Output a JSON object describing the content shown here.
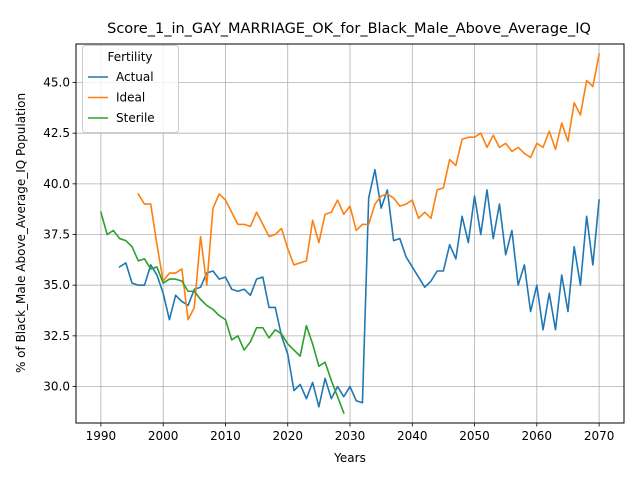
{
  "chart_data": {
    "type": "line",
    "title": "Score_1_in_GAY_MARRIAGE_OK_for_Black_Male_Above_Average_IQ",
    "xlabel": "Years",
    "ylabel": "% of Black_Male Above_Average_IQ Population",
    "xlim": [
      1986.0,
      2074.0
    ],
    "ylim": [
      28.2,
      46.9
    ],
    "xticks": [
      1990,
      2000,
      2010,
      2020,
      2030,
      2040,
      2050,
      2060,
      2070
    ],
    "xtick_labels": [
      "1990",
      "2000",
      "2010",
      "2020",
      "2030",
      "2040",
      "2050",
      "2060",
      "2070"
    ],
    "yticks": [
      30.0,
      32.5,
      35.0,
      37.5,
      40.0,
      42.5,
      45.0
    ],
    "ytick_labels": [
      "30.0",
      "32.5",
      "35.0",
      "37.5",
      "40.0",
      "42.5",
      "45.0"
    ],
    "grid": true,
    "legend": {
      "title": "Fertility",
      "position": "top-left"
    },
    "series": [
      {
        "name": "Actual",
        "color": "#1f77b4",
        "x": [
          1993,
          1994,
          1995,
          1996,
          1997,
          1998,
          1999,
          2000,
          2001,
          2002,
          2003,
          2004,
          2005,
          2006,
          2007,
          2008,
          2009,
          2010,
          2011,
          2012,
          2013,
          2014,
          2015,
          2016,
          2017,
          2018,
          2019,
          2020,
          2021,
          2022,
          2023,
          2024,
          2025,
          2026,
          2027,
          2028,
          2029,
          2030,
          2031,
          2032,
          2033,
          2034,
          2035,
          2036,
          2037,
          2038,
          2039,
          2040,
          2041,
          2042,
          2043,
          2044,
          2045,
          2046,
          2047,
          2048,
          2049,
          2050,
          2051,
          2052,
          2053,
          2054,
          2055,
          2056,
          2057,
          2058,
          2059,
          2060,
          2061,
          2062,
          2063,
          2064,
          2065,
          2066,
          2067,
          2068,
          2069,
          2070
        ],
        "y": [
          35.9,
          36.1,
          35.1,
          35.0,
          35.0,
          36.0,
          35.5,
          34.6,
          33.3,
          34.5,
          34.2,
          34.0,
          34.8,
          34.9,
          35.6,
          35.7,
          35.3,
          35.4,
          34.8,
          34.7,
          34.8,
          34.5,
          35.3,
          35.4,
          33.9,
          33.9,
          32.5,
          31.6,
          29.8,
          30.1,
          29.4,
          30.2,
          29.0,
          30.4,
          29.4,
          30.0,
          29.5,
          30.0,
          29.3,
          29.2,
          39.3,
          40.7,
          38.8,
          39.7,
          37.2,
          37.3,
          36.4,
          35.9,
          35.4,
          34.9,
          35.2,
          35.7,
          35.7,
          37.0,
          36.3,
          38.4,
          37.1,
          39.4,
          37.5,
          39.7,
          37.3,
          39.0,
          36.5,
          37.7,
          35.0,
          36.0,
          33.7,
          35.0,
          32.8,
          34.6,
          32.8,
          35.5,
          33.7,
          36.9,
          35.0,
          38.4,
          36.0,
          39.2
        ]
      },
      {
        "name": "Ideal",
        "color": "#ff7f0e",
        "x": [
          1996,
          1997,
          1998,
          1999,
          2000,
          2001,
          2002,
          2003,
          2004,
          2005,
          2006,
          2007,
          2008,
          2009,
          2010,
          2011,
          2012,
          2013,
          2014,
          2015,
          2016,
          2017,
          2018,
          2019,
          2020,
          2021,
          2022,
          2023,
          2024,
          2025,
          2026,
          2027,
          2028,
          2029,
          2030,
          2031,
          2032,
          2033,
          2034,
          2035,
          2036,
          2037,
          2038,
          2039,
          2040,
          2041,
          2042,
          2043,
          2044,
          2045,
          2046,
          2047,
          2048,
          2049,
          2050,
          2051,
          2052,
          2053,
          2054,
          2055,
          2056,
          2057,
          2058,
          2059,
          2060,
          2061,
          2062,
          2063,
          2064,
          2065,
          2066,
          2067,
          2068,
          2069,
          2070
        ],
        "y": [
          39.5,
          39.0,
          39.0,
          37.0,
          35.2,
          35.6,
          35.6,
          35.8,
          33.3,
          33.9,
          37.4,
          35.0,
          38.8,
          39.5,
          39.2,
          38.6,
          38.0,
          38.0,
          37.9,
          38.6,
          38.0,
          37.4,
          37.5,
          37.8,
          36.8,
          36.0,
          36.1,
          36.2,
          38.2,
          37.1,
          38.5,
          38.6,
          39.2,
          38.5,
          38.9,
          37.7,
          38.0,
          38.0,
          39.0,
          39.4,
          39.5,
          39.3,
          38.9,
          39.0,
          39.2,
          38.3,
          38.6,
          38.3,
          39.7,
          39.8,
          41.2,
          40.9,
          42.2,
          42.3,
          42.3,
          42.5,
          41.8,
          42.4,
          41.8,
          42.0,
          41.6,
          41.8,
          41.5,
          41.3,
          42.0,
          41.8,
          42.6,
          41.7,
          43.0,
          42.1,
          44.0,
          43.4,
          45.1,
          44.8,
          46.4
        ]
      },
      {
        "name": "Sterile",
        "color": "#2ca02c",
        "x": [
          1990,
          1991,
          1992,
          1993,
          1994,
          1995,
          1996,
          1997,
          1998,
          1999,
          2000,
          2001,
          2002,
          2003,
          2004,
          2005,
          2006,
          2007,
          2008,
          2009,
          2010,
          2011,
          2012,
          2013,
          2014,
          2015,
          2016,
          2017,
          2018,
          2019,
          2020,
          2021,
          2022,
          2023,
          2024,
          2025,
          2026,
          2027,
          2028,
          2029
        ],
        "y": [
          38.6,
          37.5,
          37.7,
          37.3,
          37.2,
          36.9,
          36.2,
          36.3,
          35.8,
          35.9,
          35.1,
          35.3,
          35.3,
          35.2,
          34.7,
          34.7,
          34.3,
          34.0,
          33.8,
          33.5,
          33.3,
          32.3,
          32.5,
          31.8,
          32.2,
          32.9,
          32.9,
          32.4,
          32.8,
          32.6,
          32.1,
          31.8,
          31.5,
          33.0,
          32.1,
          31.0,
          31.2,
          30.3,
          29.5,
          28.7
        ]
      }
    ]
  }
}
